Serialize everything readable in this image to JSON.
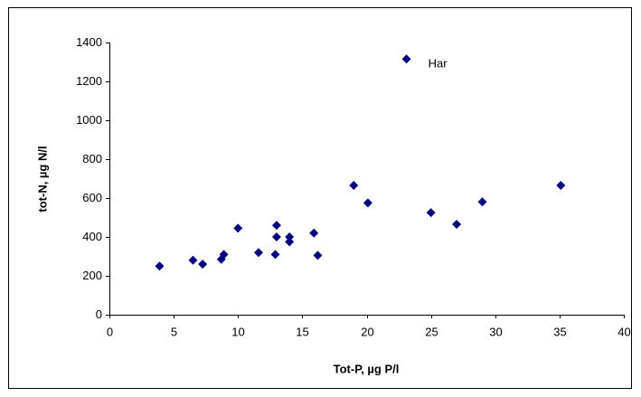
{
  "chart_data": {
    "type": "scatter",
    "xlabel": "Tot-P, µg P/l",
    "ylabel": "tot-N, µg N/l",
    "x": [
      3.9,
      6.5,
      7.25,
      8.7,
      8.9,
      10.0,
      11.6,
      12.9,
      13.0,
      13.0,
      14.0,
      14.0,
      15.9,
      16.2,
      19.0,
      20.1,
      23.1,
      25.0,
      27.0,
      29.0,
      35.1
    ],
    "values": [
      250,
      280,
      260,
      285,
      310,
      445,
      320,
      310,
      460,
      400,
      400,
      375,
      420,
      305,
      665,
      575,
      1315,
      525,
      465,
      580,
      665
    ],
    "color": "#000080",
    "xlim": [
      0,
      40
    ],
    "xticks": [
      0,
      5,
      10,
      15,
      20,
      25,
      30,
      35,
      40
    ],
    "ylim": [
      0,
      1400
    ],
    "yticks": [
      0,
      200,
      400,
      600,
      800,
      1000,
      1200,
      1400
    ],
    "grid": false,
    "annotations": [
      {
        "text": "Har",
        "x": 23.1,
        "y": 1315
      }
    ]
  }
}
